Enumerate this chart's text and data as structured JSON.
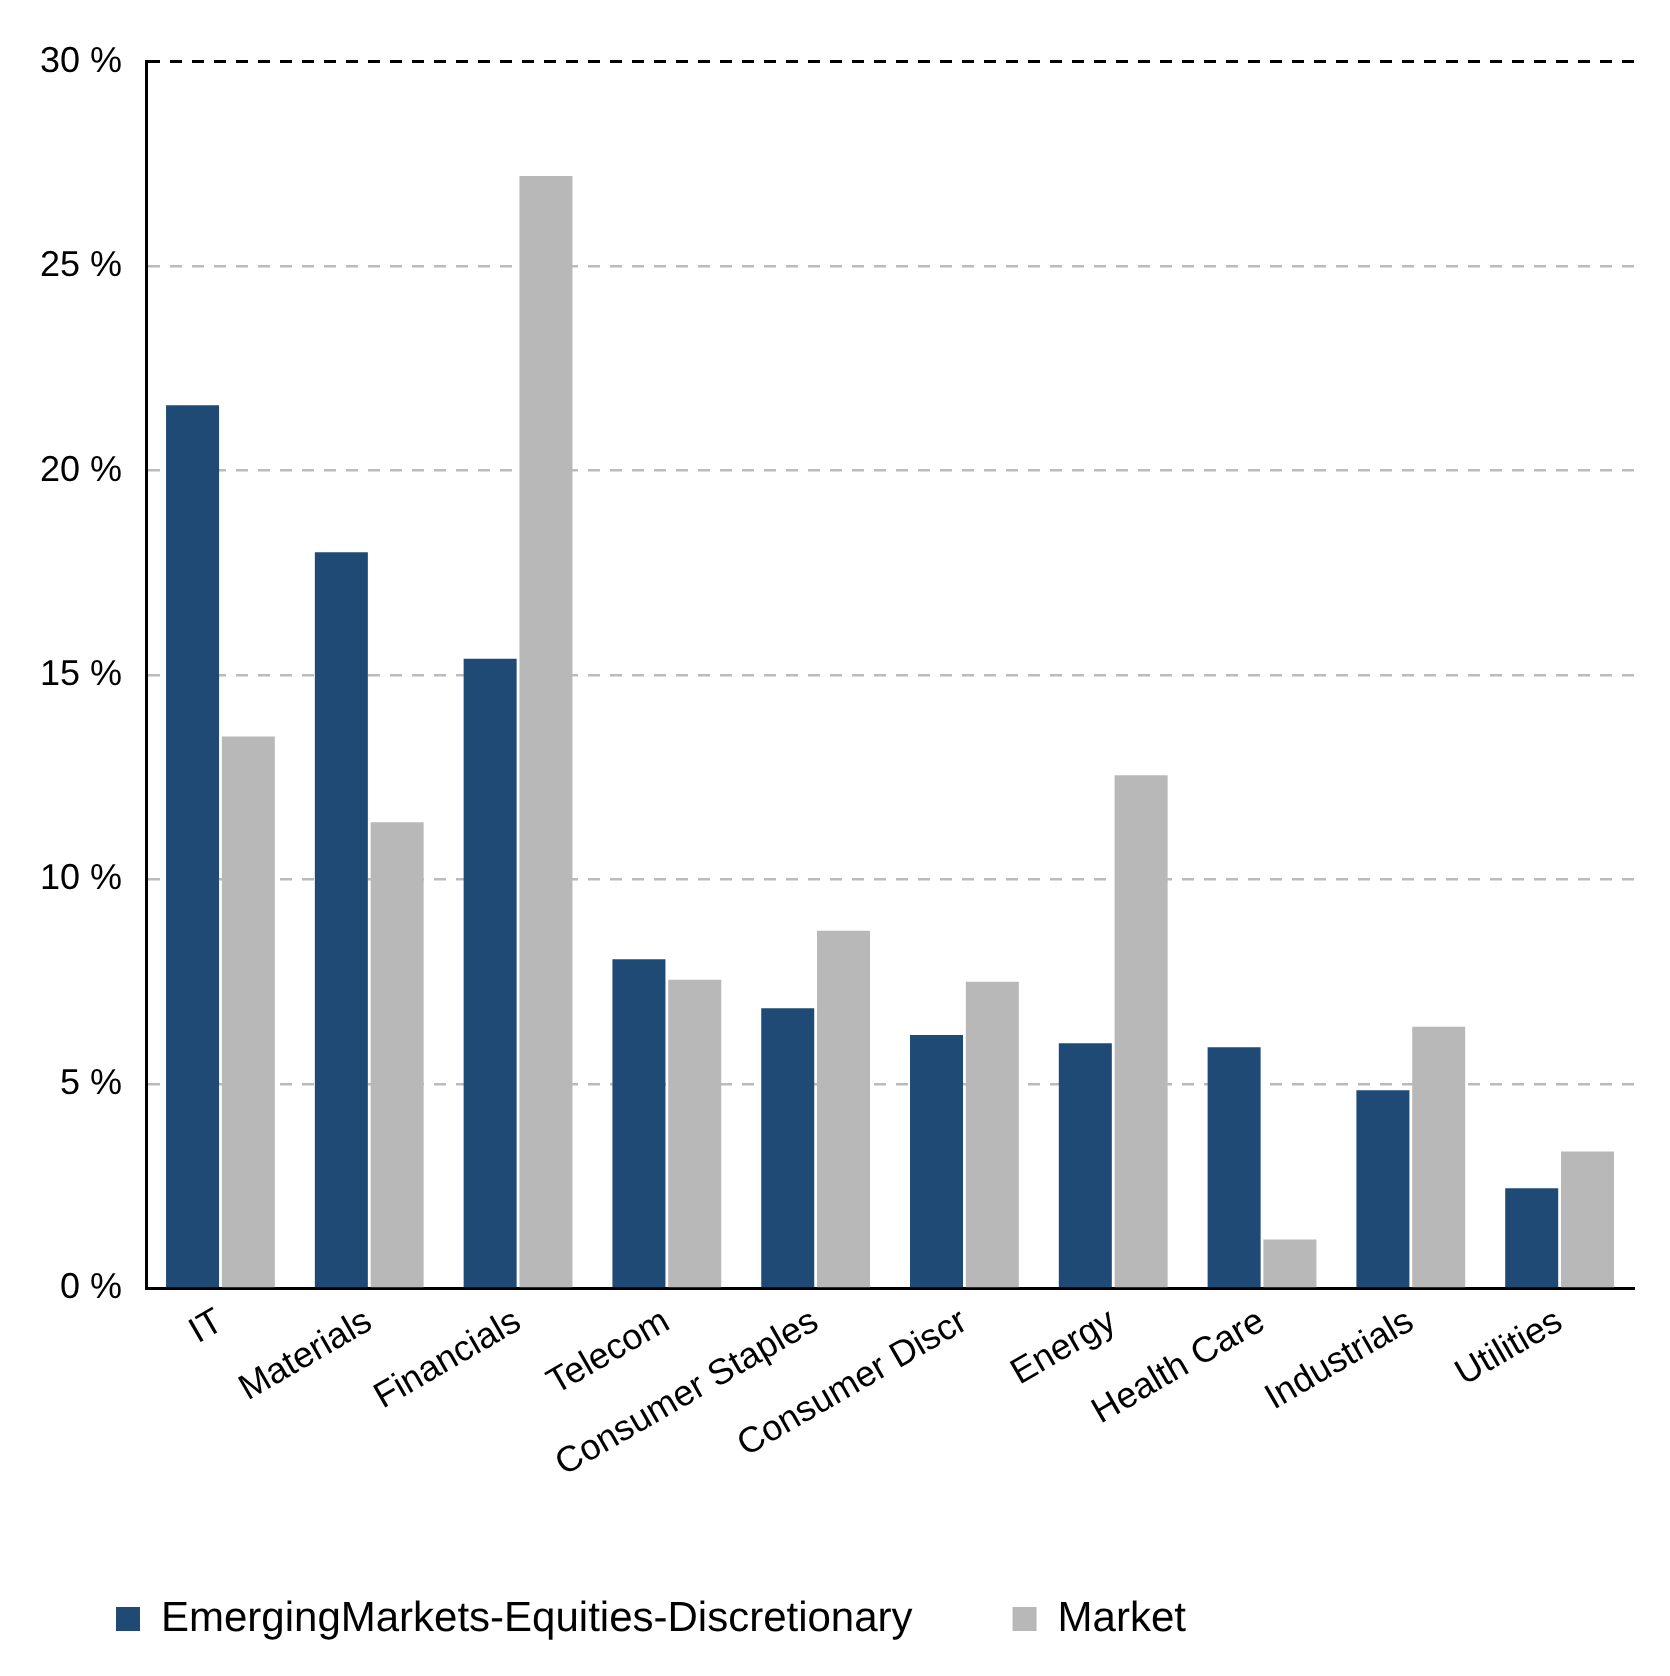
{
  "chart_data": {
    "type": "bar",
    "categories": [
      "IT",
      "Materials",
      "Financials",
      "Telecom",
      "Consumer Staples",
      "Consumer Discr",
      "Energy",
      "Health Care",
      "Industrials",
      "Utilities"
    ],
    "series": [
      {
        "name": "EmergingMarkets-Equities-Discretionary",
        "color": "#1f4a75",
        "values": [
          21.6,
          18.0,
          15.4,
          8.05,
          6.85,
          6.2,
          6.0,
          5.9,
          4.85,
          2.45
        ]
      },
      {
        "name": "Market",
        "color": "#b8b8b8",
        "values": [
          13.5,
          11.4,
          27.2,
          7.55,
          8.75,
          7.5,
          12.55,
          1.2,
          6.4,
          3.35
        ]
      }
    ],
    "ylim": [
      0,
      30
    ],
    "yticks": [
      {
        "value": 0,
        "label": "0 %"
      },
      {
        "value": 5,
        "label": "5 %"
      },
      {
        "value": 10,
        "label": "10 %"
      },
      {
        "value": 15,
        "label": "15 %"
      },
      {
        "value": 20,
        "label": "20 %"
      },
      {
        "value": 25,
        "label": "25 %"
      },
      {
        "value": 30,
        "label": "30 %"
      }
    ],
    "grid": "y",
    "legend": "bottom"
  }
}
